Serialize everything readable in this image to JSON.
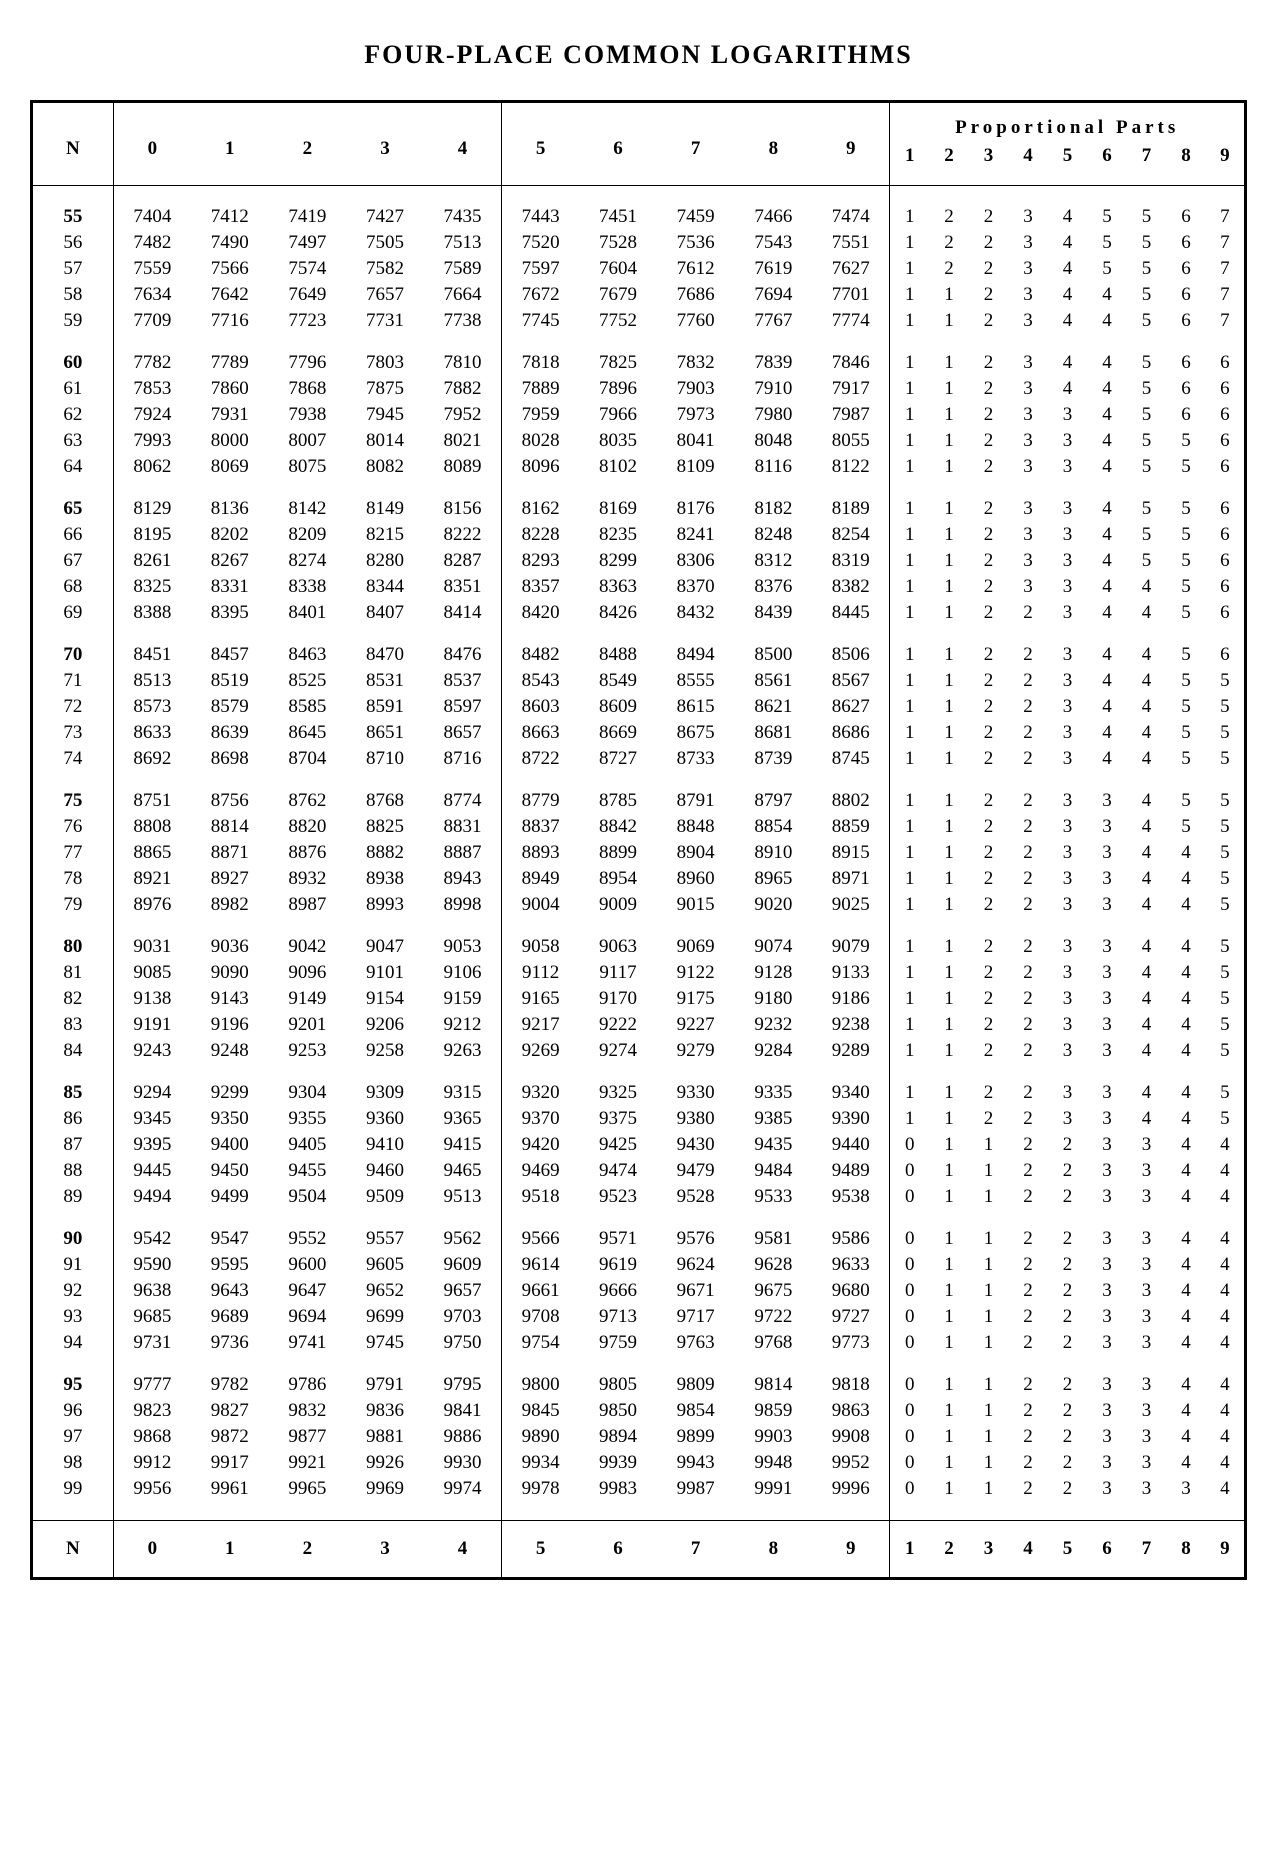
{
  "title": "FOUR-PLACE COMMON LOGARITHMS",
  "columns": {
    "n_label": "N",
    "main": [
      "0",
      "1",
      "2",
      "3",
      "4",
      "5",
      "6",
      "7",
      "8",
      "9"
    ],
    "pp_title": "Proportional  Parts",
    "pp": [
      "1",
      "2",
      "3",
      "4",
      "5",
      "6",
      "7",
      "8",
      "9"
    ]
  },
  "bold_n": [
    55,
    60,
    65,
    70,
    75,
    80,
    85,
    90,
    95
  ],
  "rows": [
    {
      "n": 55,
      "m": [
        7404,
        7412,
        7419,
        7427,
        7435,
        7443,
        7451,
        7459,
        7466,
        7474
      ],
      "p": [
        1,
        2,
        2,
        3,
        4,
        5,
        5,
        6,
        7
      ]
    },
    {
      "n": 56,
      "m": [
        7482,
        7490,
        7497,
        7505,
        7513,
        7520,
        7528,
        7536,
        7543,
        7551
      ],
      "p": [
        1,
        2,
        2,
        3,
        4,
        5,
        5,
        6,
        7
      ]
    },
    {
      "n": 57,
      "m": [
        7559,
        7566,
        7574,
        7582,
        7589,
        7597,
        7604,
        7612,
        7619,
        7627
      ],
      "p": [
        1,
        2,
        2,
        3,
        4,
        5,
        5,
        6,
        7
      ]
    },
    {
      "n": 58,
      "m": [
        7634,
        7642,
        7649,
        7657,
        7664,
        7672,
        7679,
        7686,
        7694,
        7701
      ],
      "p": [
        1,
        1,
        2,
        3,
        4,
        4,
        5,
        6,
        7
      ]
    },
    {
      "n": 59,
      "m": [
        7709,
        7716,
        7723,
        7731,
        7738,
        7745,
        7752,
        7760,
        7767,
        7774
      ],
      "p": [
        1,
        1,
        2,
        3,
        4,
        4,
        5,
        6,
        7
      ]
    },
    {
      "n": 60,
      "m": [
        7782,
        7789,
        7796,
        7803,
        7810,
        7818,
        7825,
        7832,
        7839,
        7846
      ],
      "p": [
        1,
        1,
        2,
        3,
        4,
        4,
        5,
        6,
        6
      ]
    },
    {
      "n": 61,
      "m": [
        7853,
        7860,
        7868,
        7875,
        7882,
        7889,
        7896,
        7903,
        7910,
        7917
      ],
      "p": [
        1,
        1,
        2,
        3,
        4,
        4,
        5,
        6,
        6
      ]
    },
    {
      "n": 62,
      "m": [
        7924,
        7931,
        7938,
        7945,
        7952,
        7959,
        7966,
        7973,
        7980,
        7987
      ],
      "p": [
        1,
        1,
        2,
        3,
        3,
        4,
        5,
        6,
        6
      ]
    },
    {
      "n": 63,
      "m": [
        7993,
        8000,
        8007,
        8014,
        8021,
        8028,
        8035,
        8041,
        8048,
        8055
      ],
      "p": [
        1,
        1,
        2,
        3,
        3,
        4,
        5,
        5,
        6
      ]
    },
    {
      "n": 64,
      "m": [
        8062,
        8069,
        8075,
        8082,
        8089,
        8096,
        8102,
        8109,
        8116,
        8122
      ],
      "p": [
        1,
        1,
        2,
        3,
        3,
        4,
        5,
        5,
        6
      ]
    },
    {
      "n": 65,
      "m": [
        8129,
        8136,
        8142,
        8149,
        8156,
        8162,
        8169,
        8176,
        8182,
        8189
      ],
      "p": [
        1,
        1,
        2,
        3,
        3,
        4,
        5,
        5,
        6
      ]
    },
    {
      "n": 66,
      "m": [
        8195,
        8202,
        8209,
        8215,
        8222,
        8228,
        8235,
        8241,
        8248,
        8254
      ],
      "p": [
        1,
        1,
        2,
        3,
        3,
        4,
        5,
        5,
        6
      ]
    },
    {
      "n": 67,
      "m": [
        8261,
        8267,
        8274,
        8280,
        8287,
        8293,
        8299,
        8306,
        8312,
        8319
      ],
      "p": [
        1,
        1,
        2,
        3,
        3,
        4,
        5,
        5,
        6
      ]
    },
    {
      "n": 68,
      "m": [
        8325,
        8331,
        8338,
        8344,
        8351,
        8357,
        8363,
        8370,
        8376,
        8382
      ],
      "p": [
        1,
        1,
        2,
        3,
        3,
        4,
        4,
        5,
        6
      ]
    },
    {
      "n": 69,
      "m": [
        8388,
        8395,
        8401,
        8407,
        8414,
        8420,
        8426,
        8432,
        8439,
        8445
      ],
      "p": [
        1,
        1,
        2,
        2,
        3,
        4,
        4,
        5,
        6
      ]
    },
    {
      "n": 70,
      "m": [
        8451,
        8457,
        8463,
        8470,
        8476,
        8482,
        8488,
        8494,
        8500,
        8506
      ],
      "p": [
        1,
        1,
        2,
        2,
        3,
        4,
        4,
        5,
        6
      ]
    },
    {
      "n": 71,
      "m": [
        8513,
        8519,
        8525,
        8531,
        8537,
        8543,
        8549,
        8555,
        8561,
        8567
      ],
      "p": [
        1,
        1,
        2,
        2,
        3,
        4,
        4,
        5,
        5
      ]
    },
    {
      "n": 72,
      "m": [
        8573,
        8579,
        8585,
        8591,
        8597,
        8603,
        8609,
        8615,
        8621,
        8627
      ],
      "p": [
        1,
        1,
        2,
        2,
        3,
        4,
        4,
        5,
        5
      ]
    },
    {
      "n": 73,
      "m": [
        8633,
        8639,
        8645,
        8651,
        8657,
        8663,
        8669,
        8675,
        8681,
        8686
      ],
      "p": [
        1,
        1,
        2,
        2,
        3,
        4,
        4,
        5,
        5
      ]
    },
    {
      "n": 74,
      "m": [
        8692,
        8698,
        8704,
        8710,
        8716,
        8722,
        8727,
        8733,
        8739,
        8745
      ],
      "p": [
        1,
        1,
        2,
        2,
        3,
        4,
        4,
        5,
        5
      ]
    },
    {
      "n": 75,
      "m": [
        8751,
        8756,
        8762,
        8768,
        8774,
        8779,
        8785,
        8791,
        8797,
        8802
      ],
      "p": [
        1,
        1,
        2,
        2,
        3,
        3,
        4,
        5,
        5
      ]
    },
    {
      "n": 76,
      "m": [
        8808,
        8814,
        8820,
        8825,
        8831,
        8837,
        8842,
        8848,
        8854,
        8859
      ],
      "p": [
        1,
        1,
        2,
        2,
        3,
        3,
        4,
        5,
        5
      ]
    },
    {
      "n": 77,
      "m": [
        8865,
        8871,
        8876,
        8882,
        8887,
        8893,
        8899,
        8904,
        8910,
        8915
      ],
      "p": [
        1,
        1,
        2,
        2,
        3,
        3,
        4,
        4,
        5
      ]
    },
    {
      "n": 78,
      "m": [
        8921,
        8927,
        8932,
        8938,
        8943,
        8949,
        8954,
        8960,
        8965,
        8971
      ],
      "p": [
        1,
        1,
        2,
        2,
        3,
        3,
        4,
        4,
        5
      ]
    },
    {
      "n": 79,
      "m": [
        8976,
        8982,
        8987,
        8993,
        8998,
        9004,
        9009,
        9015,
        9020,
        9025
      ],
      "p": [
        1,
        1,
        2,
        2,
        3,
        3,
        4,
        4,
        5
      ]
    },
    {
      "n": 80,
      "m": [
        9031,
        9036,
        9042,
        9047,
        9053,
        9058,
        9063,
        9069,
        9074,
        9079
      ],
      "p": [
        1,
        1,
        2,
        2,
        3,
        3,
        4,
        4,
        5
      ]
    },
    {
      "n": 81,
      "m": [
        9085,
        9090,
        9096,
        9101,
        9106,
        9112,
        9117,
        9122,
        9128,
        9133
      ],
      "p": [
        1,
        1,
        2,
        2,
        3,
        3,
        4,
        4,
        5
      ]
    },
    {
      "n": 82,
      "m": [
        9138,
        9143,
        9149,
        9154,
        9159,
        9165,
        9170,
        9175,
        9180,
        9186
      ],
      "p": [
        1,
        1,
        2,
        2,
        3,
        3,
        4,
        4,
        5
      ]
    },
    {
      "n": 83,
      "m": [
        9191,
        9196,
        9201,
        9206,
        9212,
        9217,
        9222,
        9227,
        9232,
        9238
      ],
      "p": [
        1,
        1,
        2,
        2,
        3,
        3,
        4,
        4,
        5
      ]
    },
    {
      "n": 84,
      "m": [
        9243,
        9248,
        9253,
        9258,
        9263,
        9269,
        9274,
        9279,
        9284,
        9289
      ],
      "p": [
        1,
        1,
        2,
        2,
        3,
        3,
        4,
        4,
        5
      ]
    },
    {
      "n": 85,
      "m": [
        9294,
        9299,
        9304,
        9309,
        9315,
        9320,
        9325,
        9330,
        9335,
        9340
      ],
      "p": [
        1,
        1,
        2,
        2,
        3,
        3,
        4,
        4,
        5
      ]
    },
    {
      "n": 86,
      "m": [
        9345,
        9350,
        9355,
        9360,
        9365,
        9370,
        9375,
        9380,
        9385,
        9390
      ],
      "p": [
        1,
        1,
        2,
        2,
        3,
        3,
        4,
        4,
        5
      ]
    },
    {
      "n": 87,
      "m": [
        9395,
        9400,
        9405,
        9410,
        9415,
        9420,
        9425,
        9430,
        9435,
        9440
      ],
      "p": [
        0,
        1,
        1,
        2,
        2,
        3,
        3,
        4,
        4
      ]
    },
    {
      "n": 88,
      "m": [
        9445,
        9450,
        9455,
        9460,
        9465,
        9469,
        9474,
        9479,
        9484,
        9489
      ],
      "p": [
        0,
        1,
        1,
        2,
        2,
        3,
        3,
        4,
        4
      ]
    },
    {
      "n": 89,
      "m": [
        9494,
        9499,
        9504,
        9509,
        9513,
        9518,
        9523,
        9528,
        9533,
        9538
      ],
      "p": [
        0,
        1,
        1,
        2,
        2,
        3,
        3,
        4,
        4
      ]
    },
    {
      "n": 90,
      "m": [
        9542,
        9547,
        9552,
        9557,
        9562,
        9566,
        9571,
        9576,
        9581,
        9586
      ],
      "p": [
        0,
        1,
        1,
        2,
        2,
        3,
        3,
        4,
        4
      ]
    },
    {
      "n": 91,
      "m": [
        9590,
        9595,
        9600,
        9605,
        9609,
        9614,
        9619,
        9624,
        9628,
        9633
      ],
      "p": [
        0,
        1,
        1,
        2,
        2,
        3,
        3,
        4,
        4
      ]
    },
    {
      "n": 92,
      "m": [
        9638,
        9643,
        9647,
        9652,
        9657,
        9661,
        9666,
        9671,
        9675,
        9680
      ],
      "p": [
        0,
        1,
        1,
        2,
        2,
        3,
        3,
        4,
        4
      ]
    },
    {
      "n": 93,
      "m": [
        9685,
        9689,
        9694,
        9699,
        9703,
        9708,
        9713,
        9717,
        9722,
        9727
      ],
      "p": [
        0,
        1,
        1,
        2,
        2,
        3,
        3,
        4,
        4
      ]
    },
    {
      "n": 94,
      "m": [
        9731,
        9736,
        9741,
        9745,
        9750,
        9754,
        9759,
        9763,
        9768,
        9773
      ],
      "p": [
        0,
        1,
        1,
        2,
        2,
        3,
        3,
        4,
        4
      ]
    },
    {
      "n": 95,
      "m": [
        9777,
        9782,
        9786,
        9791,
        9795,
        9800,
        9805,
        9809,
        9814,
        9818
      ],
      "p": [
        0,
        1,
        1,
        2,
        2,
        3,
        3,
        4,
        4
      ]
    },
    {
      "n": 96,
      "m": [
        9823,
        9827,
        9832,
        9836,
        9841,
        9845,
        9850,
        9854,
        9859,
        9863
      ],
      "p": [
        0,
        1,
        1,
        2,
        2,
        3,
        3,
        4,
        4
      ]
    },
    {
      "n": 97,
      "m": [
        9868,
        9872,
        9877,
        9881,
        9886,
        9890,
        9894,
        9899,
        9903,
        9908
      ],
      "p": [
        0,
        1,
        1,
        2,
        2,
        3,
        3,
        4,
        4
      ]
    },
    {
      "n": 98,
      "m": [
        9912,
        9917,
        9921,
        9926,
        9930,
        9934,
        9939,
        9943,
        9948,
        9952
      ],
      "p": [
        0,
        1,
        1,
        2,
        2,
        3,
        3,
        4,
        4
      ]
    },
    {
      "n": 99,
      "m": [
        9956,
        9961,
        9965,
        9969,
        9974,
        9978,
        9983,
        9987,
        9991,
        9996
      ],
      "p": [
        0,
        1,
        1,
        2,
        2,
        3,
        3,
        3,
        4
      ]
    }
  ]
}
